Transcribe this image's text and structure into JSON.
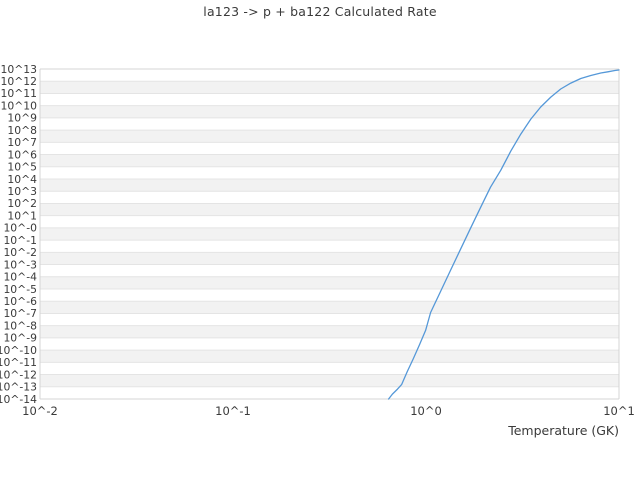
{
  "title": "la123 -> p + ba122 Calculated Rate",
  "colors": {
    "line": "#5598d8",
    "band": "#f2f2f2",
    "grid": "#e4e4e4",
    "border": "#d4d4d4",
    "text": "#3a3a3a",
    "background": "#ffffff"
  },
  "chart_data": {
    "type": "line",
    "title": "la123 -> p + ba122 Calculated Rate",
    "xlabel": "Temperature (GK)",
    "ylabel": "",
    "x_scale": "log",
    "y_scale": "log",
    "xlim": [
      0.01,
      10
    ],
    "ylim_log10": [
      -14,
      13
    ],
    "grid": "horizontal-bands",
    "legend": "none",
    "x_tick_labels": [
      "10^-2",
      "10^-1",
      "10^0",
      "10^1"
    ],
    "y_tick_labels": [
      "10^13",
      "10^12",
      "10^11",
      "10^10",
      "10^9",
      "10^8",
      "10^7",
      "10^6",
      "10^5",
      "10^4",
      "10^3",
      "10^2",
      "10^1",
      "10^-0",
      "10^-1",
      "10^-2",
      "10^-3",
      "10^-4",
      "10^-5",
      "10^-6",
      "10^-7",
      "10^-8",
      "10^-9",
      "10^-10",
      "10^-11",
      "10^-12",
      "10^-13",
      "10^-14"
    ],
    "series": [
      {
        "name": "calculated-rate",
        "color": "#5598d8",
        "points_T_GK_vs_log10_rate": [
          [
            0.64,
            -14.0
          ],
          [
            0.67,
            -13.6
          ],
          [
            0.712,
            -13.19
          ],
          [
            0.747,
            -12.82
          ],
          [
            0.8,
            -11.75
          ],
          [
            0.86,
            -10.69
          ],
          [
            0.926,
            -9.54
          ],
          [
            0.995,
            -8.39
          ],
          [
            1.056,
            -6.92
          ],
          [
            1.19,
            -5.2
          ],
          [
            1.34,
            -3.48
          ],
          [
            1.51,
            -1.75
          ],
          [
            1.7,
            -0.03
          ],
          [
            1.92,
            1.69
          ],
          [
            2.16,
            3.33
          ],
          [
            2.44,
            4.72
          ],
          [
            2.75,
            6.28
          ],
          [
            3.1,
            7.67
          ],
          [
            3.49,
            8.9
          ],
          [
            3.93,
            9.89
          ],
          [
            4.43,
            10.7
          ],
          [
            4.99,
            11.36
          ],
          [
            5.63,
            11.85
          ],
          [
            6.34,
            12.22
          ],
          [
            7.14,
            12.47
          ],
          [
            8.05,
            12.67
          ],
          [
            8.76,
            12.77
          ],
          [
            9.52,
            12.88
          ],
          [
            10.0,
            12.92
          ]
        ]
      }
    ]
  }
}
